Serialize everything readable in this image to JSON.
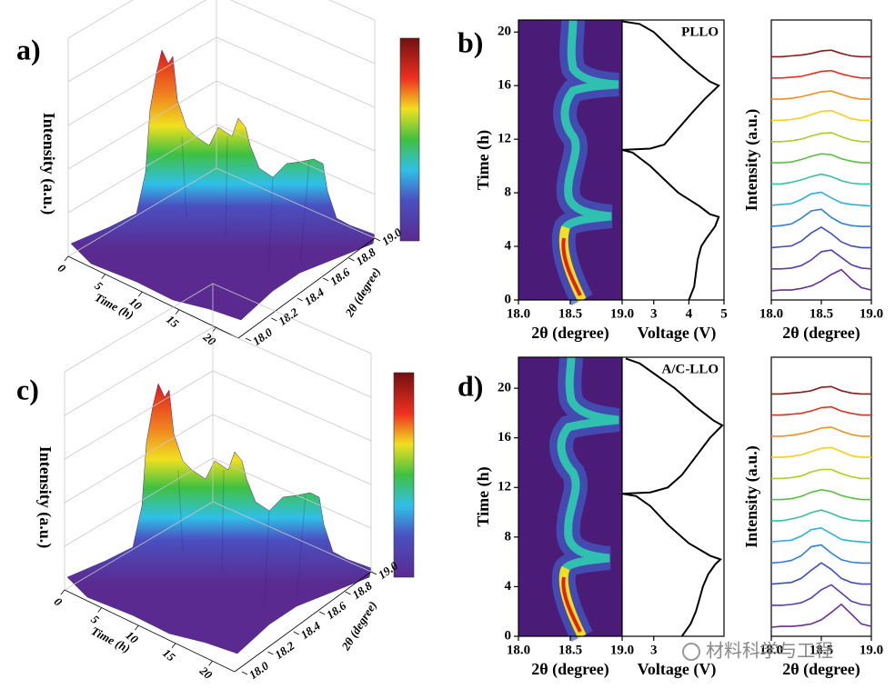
{
  "chart_data": [
    {
      "type": "surface3d",
      "panel_label": "a)",
      "zlabel": "Intensity (a.u.)",
      "xlabel": "Time (h)",
      "xlim": [
        0,
        23
      ],
      "xticks": [
        0,
        5,
        10,
        15,
        20
      ],
      "ylabel": "2θ (degree)",
      "ylim": [
        18,
        19
      ],
      "yticks": [
        {
          "value": 18,
          "label": "18.0"
        },
        18.2,
        18.4,
        18.6,
        18.8,
        {
          "value": 19,
          "label": "19.0"
        }
      ]
    },
    {
      "type": "heatmap",
      "panel_label": "b)",
      "xlabel": "2θ (degree)",
      "ylabel": "Time (h)",
      "xlim": [
        18,
        19
      ],
      "xticks": [
        {
          "value": 18,
          "label": "18.0"
        },
        18.5,
        {
          "value": 19,
          "label": "19.0"
        }
      ],
      "ylim": [
        0,
        20.9
      ],
      "yticks": [
        0,
        4,
        8,
        12,
        16,
        20
      ]
    },
    {
      "type": "line",
      "annotation": "PLLO",
      "xlabel": "Voltage (V)",
      "xlim": [
        2.1,
        5
      ],
      "xticks": [
        3,
        4,
        5
      ],
      "ylim": [
        0,
        20.9
      ],
      "x": [
        4.0,
        4.15,
        4.2,
        4.25,
        4.35,
        4.5,
        4.75,
        4.85,
        4.6,
        4.3,
        3.7,
        3.3,
        2.9,
        2.4,
        2.1,
        2.9,
        3.3,
        3.6,
        4.1,
        4.45,
        4.85,
        4.6,
        4.25,
        3.8,
        3.4,
        3.0,
        2.6,
        2.1
      ],
      "values": [
        0,
        1,
        2,
        3,
        4,
        4.6,
        5.5,
        6.2,
        6.4,
        7,
        8,
        9,
        10,
        11,
        11.2,
        11.3,
        11.6,
        12.5,
        14,
        15,
        16,
        16.3,
        17,
        18,
        19,
        20,
        20.6,
        20.8
      ]
    },
    {
      "type": "waterfall",
      "xlabel": "2θ (degree)",
      "ylabel": "Intensity (a.u.)",
      "xlim": [
        18,
        19
      ],
      "xticks": [
        {
          "value": 18,
          "label": "18.0"
        },
        18.5,
        {
          "value": 19,
          "label": "19.0"
        }
      ],
      "x": [
        18.0,
        18.1,
        18.2,
        18.3,
        18.4,
        18.5,
        18.6,
        18.7,
        18.8,
        18.9,
        19.0
      ],
      "series": [
        {
          "color": "#6a2c9c",
          "values": [
            0,
            0.1,
            0.1,
            0.3,
            0.6,
            1.2,
            2,
            2.6,
            1.4,
            0.4,
            0.1
          ]
        },
        {
          "color": "#5b3bb0",
          "values": [
            0.1,
            0.1,
            0.2,
            0.5,
            1.2,
            2.2,
            2.4,
            1.5,
            0.6,
            0.2,
            0.1
          ]
        },
        {
          "color": "#3f4fc0",
          "values": [
            0.1,
            0.2,
            0.3,
            0.9,
            1.9,
            2.6,
            1.8,
            0.8,
            0.3,
            0.1,
            0.1
          ]
        },
        {
          "color": "#2f7fd8",
          "values": [
            0.1,
            0.2,
            0.4,
            1.1,
            2.0,
            2.2,
            1.2,
            0.5,
            0.2,
            0.1,
            0.1
          ]
        },
        {
          "color": "#2ab0e0",
          "values": [
            0.1,
            0.2,
            0.3,
            0.8,
            1.5,
            1.7,
            1.0,
            0.4,
            0.2,
            0.1,
            0
          ]
        },
        {
          "color": "#3cc0a0",
          "values": [
            0.1,
            0.1,
            0.3,
            0.6,
            1.0,
            1.3,
            1.0,
            0.5,
            0.2,
            0.1,
            0.1
          ]
        },
        {
          "color": "#5ac040",
          "values": [
            0.1,
            0.1,
            0.2,
            0.5,
            0.9,
            1.2,
            1.1,
            0.6,
            0.3,
            0.1,
            0.1
          ]
        },
        {
          "color": "#a8d020",
          "values": [
            0.1,
            0.1,
            0.2,
            0.4,
            0.8,
            1.1,
            1.2,
            0.7,
            0.3,
            0.1,
            0.1
          ]
        },
        {
          "color": "#f0d020",
          "values": [
            0.1,
            0.1,
            0.2,
            0.4,
            0.8,
            1.2,
            1.3,
            0.8,
            0.3,
            0.1,
            0.1
          ]
        },
        {
          "color": "#f09020",
          "values": [
            0.1,
            0.1,
            0.2,
            0.4,
            0.7,
            1.0,
            1.1,
            0.7,
            0.3,
            0.1,
            0.1
          ]
        },
        {
          "color": "#e03020",
          "values": [
            0.1,
            0.1,
            0.2,
            0.3,
            0.6,
            0.9,
            1.0,
            0.6,
            0.3,
            0.1,
            0.1
          ]
        },
        {
          "color": "#8b1a1a",
          "values": [
            0.1,
            0.1,
            0.2,
            0.3,
            0.5,
            0.8,
            0.9,
            0.5,
            0.2,
            0.1,
            0.1
          ]
        }
      ]
    },
    {
      "type": "surface3d",
      "panel_label": "c)",
      "zlabel": "Intensity (a.u.)",
      "xlabel": "Time (h)",
      "xlim": [
        0,
        23
      ],
      "xticks": [
        0,
        5,
        10,
        15,
        20
      ],
      "ylabel": "2θ (degree)",
      "ylim": [
        18,
        19
      ],
      "yticks": [
        {
          "value": 18,
          "label": "18.0"
        },
        18.2,
        18.4,
        18.6,
        18.8,
        {
          "value": 19,
          "label": "19.0"
        }
      ]
    },
    {
      "type": "heatmap",
      "panel_label": "d)",
      "xlabel": "2θ (degree)",
      "ylabel": "Time (h)",
      "xlim": [
        18,
        19
      ],
      "xticks": [
        {
          "value": 18,
          "label": "18.0"
        },
        18.5,
        {
          "value": 19,
          "label": "19.0"
        }
      ],
      "ylim": [
        0,
        22.5
      ],
      "yticks": [
        0,
        4,
        8,
        12,
        16,
        20
      ]
    },
    {
      "type": "line",
      "annotation": "A/C-LLO",
      "xlabel": "Voltage (V)",
      "xlim": [
        2.1,
        5
      ],
      "xticks": [
        3
      ],
      "ylim": [
        0,
        22.5
      ],
      "x": [
        3.8,
        4.05,
        4.2,
        4.3,
        4.4,
        4.55,
        4.75,
        4.9,
        4.6,
        4.0,
        3.4,
        2.9,
        2.5,
        2.1,
        2.9,
        3.4,
        3.8,
        4.2,
        4.6,
        4.95,
        4.7,
        4.2,
        3.6,
        3.1,
        2.6,
        2.2
      ],
      "values": [
        0,
        1,
        2,
        3,
        4,
        5,
        5.8,
        6.2,
        6.5,
        7.5,
        9,
        10.5,
        11.3,
        11.5,
        11.6,
        12,
        13,
        14.5,
        16,
        17,
        17.4,
        18.5,
        20,
        21,
        22,
        22.4
      ]
    },
    {
      "type": "waterfall",
      "xlabel": "2θ (degree)",
      "ylabel": "Intensity (a.u.)",
      "xlim": [
        18,
        19
      ],
      "xticks": [
        {
          "value": 18,
          "label": "18.0"
        },
        18.5,
        {
          "value": 19,
          "label": "19.0"
        }
      ],
      "x": [
        18.0,
        18.1,
        18.2,
        18.3,
        18.4,
        18.5,
        18.6,
        18.7,
        18.8,
        18.9,
        19.0
      ],
      "series": [
        {
          "color": "#6a2c9c",
          "values": [
            0,
            0.1,
            0.1,
            0.2,
            0.4,
            0.9,
            1.8,
            2.8,
            1.6,
            0.4,
            0.1
          ]
        },
        {
          "color": "#5b3bb0",
          "values": [
            0.1,
            0.1,
            0.2,
            0.4,
            1.0,
            2.0,
            2.6,
            1.6,
            0.6,
            0.2,
            0.1
          ]
        },
        {
          "color": "#3f4fc0",
          "values": [
            0.1,
            0.2,
            0.3,
            0.8,
            1.8,
            2.7,
            1.9,
            0.8,
            0.3,
            0.1,
            0.1
          ]
        },
        {
          "color": "#2f7fd8",
          "values": [
            0.1,
            0.2,
            0.4,
            1.0,
            2.1,
            2.3,
            1.3,
            0.5,
            0.2,
            0.1,
            0.1
          ]
        },
        {
          "color": "#2ab0e0",
          "values": [
            0.1,
            0.2,
            0.3,
            0.8,
            1.6,
            1.8,
            1.1,
            0.4,
            0.2,
            0.1,
            0
          ]
        },
        {
          "color": "#3cc0a0",
          "values": [
            0.1,
            0.1,
            0.3,
            0.6,
            1.1,
            1.4,
            1.0,
            0.5,
            0.2,
            0.1,
            0.1
          ]
        },
        {
          "color": "#5ac040",
          "values": [
            0.1,
            0.1,
            0.2,
            0.5,
            1.0,
            1.3,
            1.1,
            0.6,
            0.3,
            0.1,
            0.1
          ]
        },
        {
          "color": "#a8d020",
          "values": [
            0.1,
            0.1,
            0.2,
            0.4,
            0.9,
            1.2,
            1.2,
            0.7,
            0.3,
            0.1,
            0.1
          ]
        },
        {
          "color": "#f0d020",
          "values": [
            0.1,
            0.1,
            0.2,
            0.4,
            0.8,
            1.2,
            1.3,
            0.8,
            0.3,
            0.1,
            0.1
          ]
        },
        {
          "color": "#f09020",
          "values": [
            0.1,
            0.1,
            0.2,
            0.4,
            0.7,
            1.1,
            1.2,
            0.7,
            0.3,
            0.1,
            0.1
          ]
        },
        {
          "color": "#e03020",
          "values": [
            0.1,
            0.1,
            0.2,
            0.3,
            0.6,
            1.0,
            1.1,
            0.6,
            0.3,
            0.1,
            0.1
          ]
        },
        {
          "color": "#8b1a1a",
          "values": [
            0.1,
            0.1,
            0.2,
            0.3,
            0.5,
            0.9,
            1.0,
            0.5,
            0.2,
            0.1,
            0.1
          ]
        }
      ]
    }
  ],
  "watermark": "材料科学与工程"
}
